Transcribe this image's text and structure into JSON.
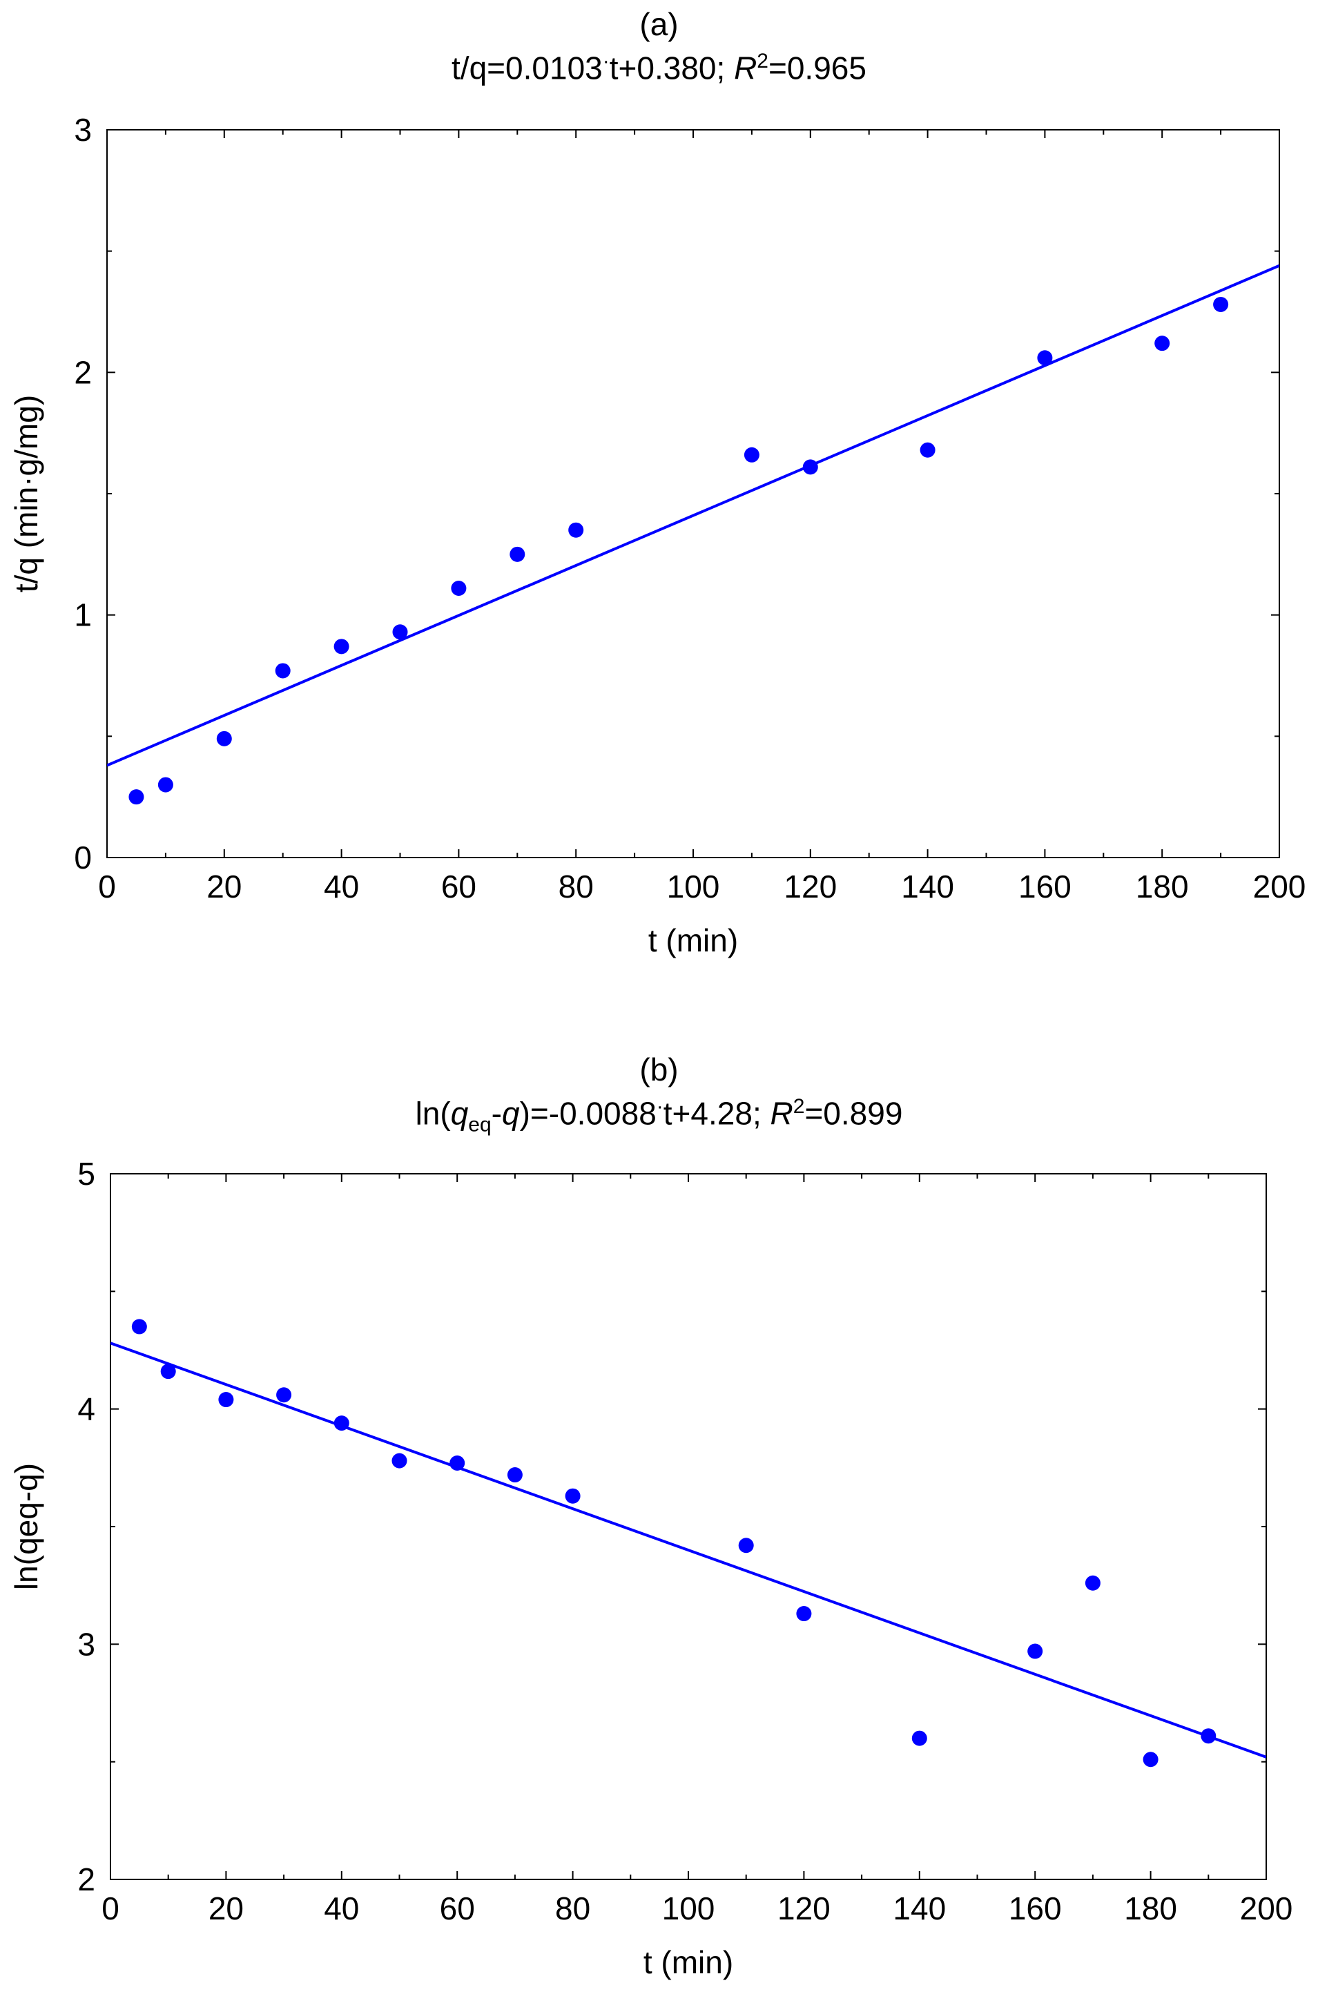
{
  "chart_data": [
    {
      "type": "scatter",
      "panel_label": "(a)",
      "equation": {
        "lhs": "t/q=0.0103",
        "dot": "·",
        "rhs": "t+0.380; ",
        "r_symbol": "R",
        "r_power": "2",
        "r_value": "=0.965"
      },
      "xlabel": "t (min)",
      "ylabel": "t/q (min·g/mg)",
      "xlim": [
        0,
        200
      ],
      "ylim": [
        0,
        3
      ],
      "xticks": [
        0,
        20,
        40,
        60,
        80,
        100,
        120,
        140,
        160,
        180,
        200
      ],
      "yticks": [
        0,
        1,
        2,
        3
      ],
      "grid": false,
      "color": "#0000ff",
      "series": [
        {
          "name": "data",
          "x": [
            5,
            10,
            20,
            30,
            40,
            50,
            60,
            70,
            80,
            110,
            120,
            140,
            160,
            180,
            190
          ],
          "y": [
            0.25,
            0.3,
            0.49,
            0.77,
            0.87,
            0.93,
            1.11,
            1.25,
            1.35,
            1.66,
            1.61,
            1.68,
            2.06,
            2.12,
            2.28
          ]
        }
      ],
      "fit": {
        "slope": 0.0103,
        "intercept": 0.38
      }
    },
    {
      "type": "scatter",
      "panel_label": "(b)",
      "equation": {
        "pre": "ln(",
        "q": "q",
        "sub": "eq",
        "mid": "-",
        "q2": "q",
        "post": ")=-0.0088",
        "dot": "·",
        "rhs": "t+4.28; ",
        "r_symbol": "R",
        "r_power": "2",
        "r_value": "=0.899"
      },
      "xlabel": "t (min)",
      "ylabel": "ln(qeq-q)",
      "xlim": [
        0,
        200
      ],
      "ylim": [
        2,
        5
      ],
      "xticks": [
        0,
        20,
        40,
        60,
        80,
        100,
        120,
        140,
        160,
        180,
        200
      ],
      "yticks": [
        2,
        3,
        4,
        5
      ],
      "grid": false,
      "color": "#0000ff",
      "series": [
        {
          "name": "data",
          "x": [
            5,
            10,
            20,
            30,
            40,
            50,
            60,
            70,
            80,
            110,
            120,
            140,
            160,
            170,
            180,
            190
          ],
          "y": [
            4.35,
            4.16,
            4.04,
            4.06,
            3.94,
            3.78,
            3.77,
            3.72,
            3.63,
            3.42,
            3.13,
            2.6,
            2.97,
            3.26,
            2.51,
            2.61
          ]
        }
      ],
      "fit": {
        "slope": -0.0088,
        "intercept": 4.28
      }
    }
  ]
}
